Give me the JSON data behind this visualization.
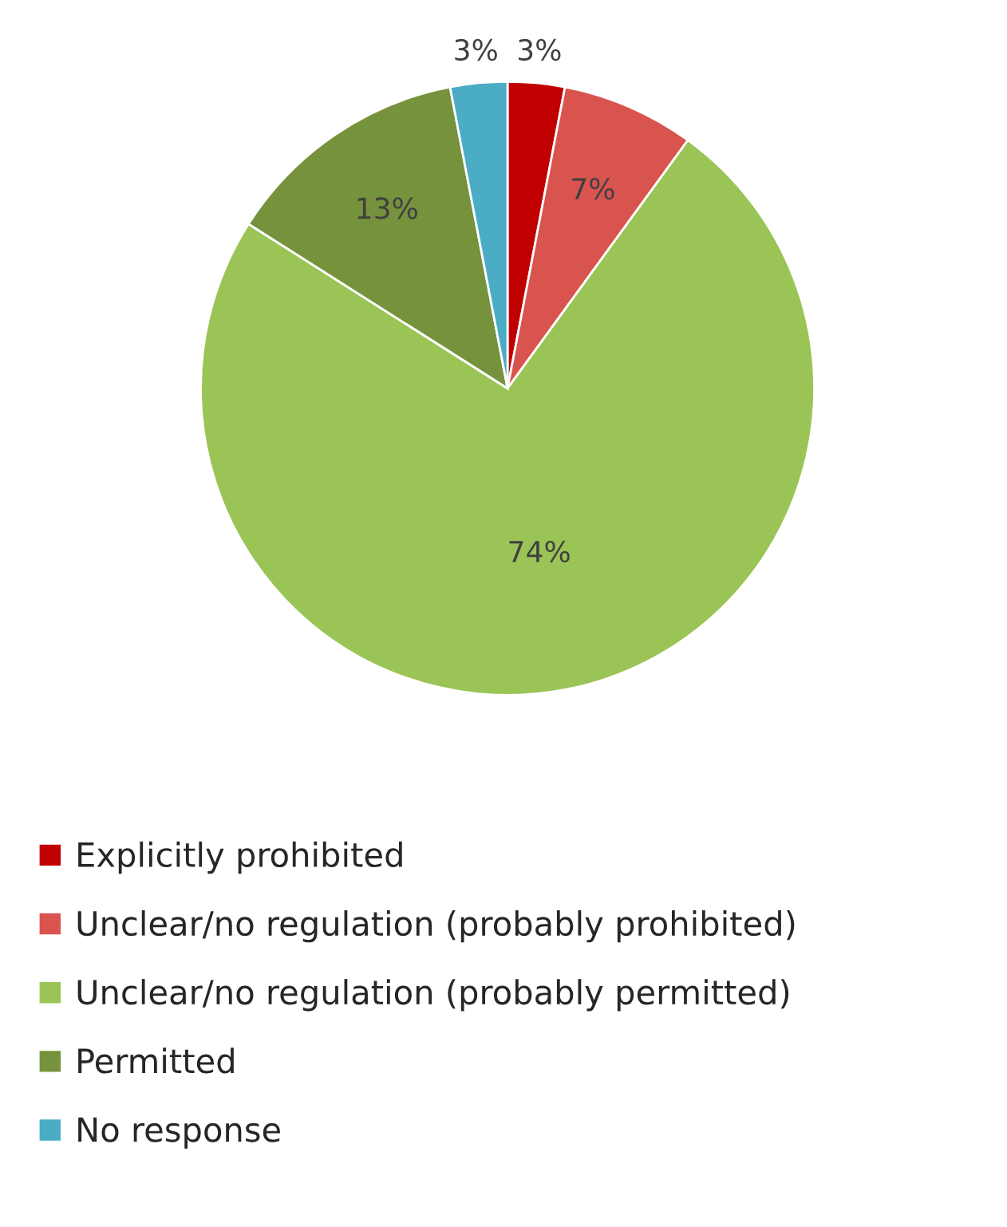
{
  "chart_data": {
    "type": "pie",
    "categories": [
      "Explicitly prohibited",
      "Unclear/no regulation (probably prohibited)",
      "Unclear/no regulation (probably permitted)",
      "Permitted",
      "No response"
    ],
    "values": [
      3,
      7,
      74,
      13,
      3
    ],
    "value_labels": [
      "3%",
      "7%",
      "74%",
      "13%",
      "3%"
    ],
    "colors": [
      "#c00000",
      "#d9534f",
      "#9bc456",
      "#76923c",
      "#4bacc6"
    ],
    "legend": "bottom"
  }
}
